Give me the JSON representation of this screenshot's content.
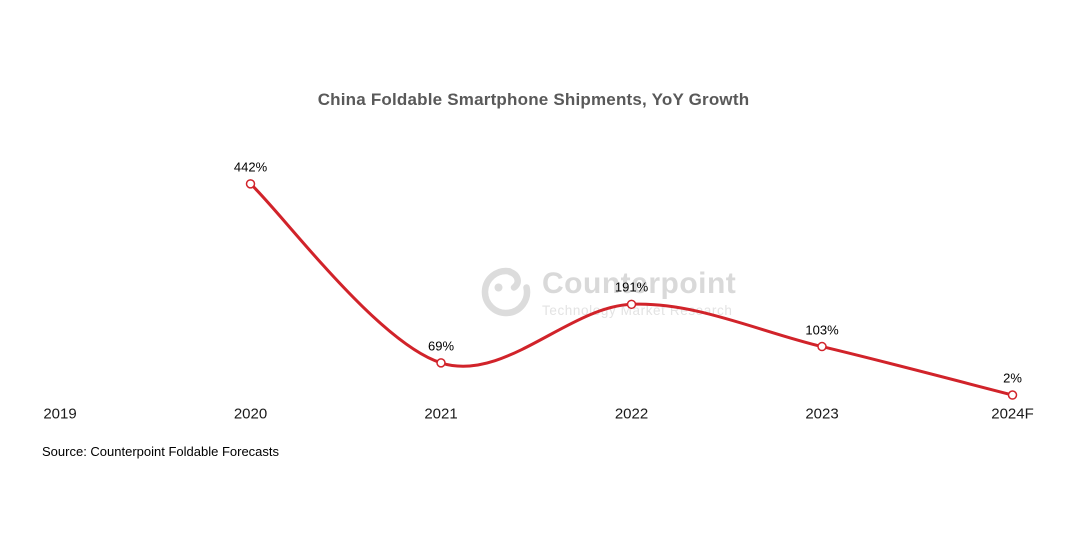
{
  "title": "China Foldable Smartphone Shipments, YoY Growth",
  "source": "Source: Counterpoint Foldable Forecasts",
  "watermark": {
    "logo_icon": "counterpoint-logo-icon",
    "name": "Counterpoint",
    "tagline": "Technology Market Research"
  },
  "colors": {
    "background": "#ffffff",
    "line": "#d1232a",
    "marker_fill": "#ffffff",
    "title_text": "#595959",
    "axis_label_text": "#1a1a1a",
    "data_label_text": "#000000",
    "watermark_name": "#d9d9d9",
    "watermark_tagline": "#e3e3e3"
  },
  "chart_data": {
    "type": "line",
    "title": "China Foldable Smartphone Shipments, YoY Growth",
    "categories": [
      "2019",
      "2020",
      "2021",
      "2022",
      "2023",
      "2024F"
    ],
    "series": [
      {
        "name": "YoY Growth",
        "values": [
          null,
          442,
          69,
          191,
          103,
          2
        ]
      }
    ],
    "data_labels": [
      "",
      "442%",
      "69%",
      "191%",
      "103%",
      "2%"
    ],
    "xlabel": "",
    "ylabel": "",
    "ylim": [
      0,
      460
    ],
    "grid": false,
    "legend": "none",
    "smooth": true,
    "marker": "open-circle"
  }
}
